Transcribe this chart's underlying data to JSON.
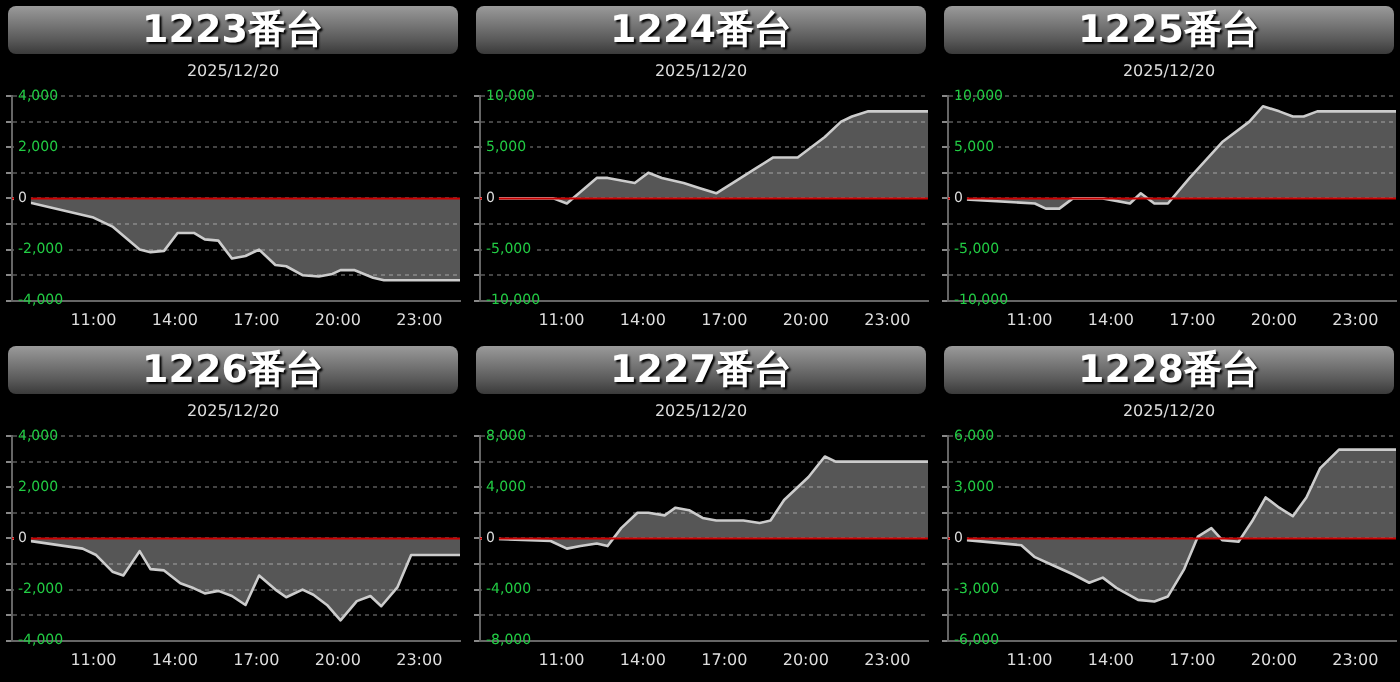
{
  "chart_data": [
    {
      "type": "area",
      "title": "1223番台",
      "subtitle": "2025/12/20",
      "marker": "none",
      "grid": "y",
      "legend": false,
      "xlim": [
        8,
        24.5
      ],
      "xticks": [
        {
          "value": 11,
          "label": "11:00"
        },
        {
          "value": 14,
          "label": "14:00"
        },
        {
          "value": 17,
          "label": "17:00"
        },
        {
          "value": 20,
          "label": "20:00"
        },
        {
          "value": 23,
          "label": "23:00"
        }
      ],
      "ylim": [
        -4000,
        4000
      ],
      "yticks": [
        {
          "value": -4000,
          "label": "-4,000"
        },
        {
          "value": -3000,
          "label": null
        },
        {
          "value": -2000,
          "label": "-2,000"
        },
        {
          "value": -1000,
          "label": null
        },
        {
          "value": 0,
          "label": "0"
        },
        {
          "value": 1000,
          "label": null
        },
        {
          "value": 2000,
          "label": "2,000"
        },
        {
          "value": 3000,
          "label": null
        },
        {
          "value": 4000,
          "label": "4,000"
        }
      ],
      "ref_lines": [
        {
          "axis": "y",
          "value": 0,
          "color": "#cc0000"
        }
      ],
      "series": [
        {
          "color": "#cccccc",
          "x": [
            8,
            11,
            11.7,
            12.7,
            13.1,
            13.6,
            14.1,
            14.7,
            15.1,
            15.6,
            16.1,
            16.6,
            17.1,
            17.7,
            18.1,
            18.7,
            19.3,
            19.8,
            20.1,
            20.6,
            21.3,
            21.7,
            24.5
          ],
          "values": [
            0,
            -750,
            -1100,
            -2000,
            -2100,
            -2050,
            -1350,
            -1350,
            -1600,
            -1650,
            -2350,
            -2250,
            -2000,
            -2600,
            -2650,
            -3000,
            -3050,
            -2950,
            -2800,
            -2800,
            -3100,
            -3200,
            -3200
          ]
        }
      ]
    },
    {
      "type": "area",
      "title": "1224番台",
      "subtitle": "2025/12/20",
      "marker": "none",
      "grid": "y",
      "legend": false,
      "xlim": [
        8,
        24.5
      ],
      "xticks": [
        {
          "value": 11,
          "label": "11:00"
        },
        {
          "value": 14,
          "label": "14:00"
        },
        {
          "value": 17,
          "label": "17:00"
        },
        {
          "value": 20,
          "label": "20:00"
        },
        {
          "value": 23,
          "label": "23:00"
        }
      ],
      "ylim": [
        -10000,
        10000
      ],
      "yticks": [
        {
          "value": -10000,
          "label": "-10,000"
        },
        {
          "value": -7500,
          "label": null
        },
        {
          "value": -5000,
          "label": "-5,000"
        },
        {
          "value": -2500,
          "label": null
        },
        {
          "value": 0,
          "label": "0"
        },
        {
          "value": 2500,
          "label": null
        },
        {
          "value": 5000,
          "label": "5,000"
        },
        {
          "value": 7500,
          "label": null
        },
        {
          "value": 10000,
          "label": "10,000"
        }
      ],
      "ref_lines": [
        {
          "axis": "y",
          "value": 0,
          "color": "#cc0000"
        }
      ],
      "series": [
        {
          "color": "#cccccc",
          "x": [
            8,
            10.7,
            11.2,
            12.3,
            12.7,
            13.7,
            14.2,
            14.7,
            15.5,
            16.1,
            16.7,
            17.3,
            18.2,
            18.8,
            19.2,
            19.7,
            20.2,
            20.7,
            21.3,
            21.7,
            22.3,
            24.5
          ],
          "values": [
            0,
            0,
            -500,
            2000,
            2000,
            1500,
            2500,
            2000,
            1500,
            1000,
            500,
            1500,
            3000,
            4000,
            4000,
            4000,
            5000,
            6000,
            7500,
            8000,
            8500,
            8500
          ]
        }
      ]
    },
    {
      "type": "area",
      "title": "1225番台",
      "subtitle": "2025/12/20",
      "marker": "none",
      "grid": "y",
      "legend": false,
      "xlim": [
        8,
        24.5
      ],
      "xticks": [
        {
          "value": 11,
          "label": "11:00"
        },
        {
          "value": 14,
          "label": "14:00"
        },
        {
          "value": 17,
          "label": "17:00"
        },
        {
          "value": 20,
          "label": "20:00"
        },
        {
          "value": 23,
          "label": "23:00"
        }
      ],
      "ylim": [
        -10000,
        10000
      ],
      "yticks": [
        {
          "value": -10000,
          "label": "-10,000"
        },
        {
          "value": -7500,
          "label": null
        },
        {
          "value": -5000,
          "label": "-5,000"
        },
        {
          "value": -2500,
          "label": null
        },
        {
          "value": 0,
          "label": "0"
        },
        {
          "value": 2500,
          "label": null
        },
        {
          "value": 5000,
          "label": "5,000"
        },
        {
          "value": 7500,
          "label": null
        },
        {
          "value": 10000,
          "label": "10,000"
        }
      ],
      "ref_lines": [
        {
          "axis": "y",
          "value": 0,
          "color": "#cc0000"
        }
      ],
      "series": [
        {
          "color": "#cccccc",
          "x": [
            8,
            11.2,
            11.6,
            12.1,
            12.6,
            13.1,
            13.7,
            14.7,
            15.1,
            15.6,
            16.1,
            16.9,
            18.1,
            19.1,
            19.6,
            20.2,
            20.7,
            21.1,
            21.6,
            24.5
          ],
          "values": [
            0,
            -500,
            -1000,
            -1000,
            0,
            0,
            0,
            -500,
            500,
            -500,
            -500,
            2000,
            5500,
            7500,
            9000,
            8500,
            8000,
            8000,
            8500,
            8500
          ]
        }
      ]
    },
    {
      "type": "area",
      "title": "1226番台",
      "subtitle": "2025/12/20",
      "marker": "none",
      "grid": "y",
      "legend": false,
      "xlim": [
        8,
        24.5
      ],
      "xticks": [
        {
          "value": 11,
          "label": "11:00"
        },
        {
          "value": 14,
          "label": "14:00"
        },
        {
          "value": 17,
          "label": "17:00"
        },
        {
          "value": 20,
          "label": "20:00"
        },
        {
          "value": 23,
          "label": "23:00"
        }
      ],
      "ylim": [
        -4000,
        4000
      ],
      "yticks": [
        {
          "value": -4000,
          "label": "-4,000"
        },
        {
          "value": -3000,
          "label": null
        },
        {
          "value": -2000,
          "label": "-2,000"
        },
        {
          "value": -1000,
          "label": null
        },
        {
          "value": 0,
          "label": "0"
        },
        {
          "value": 1000,
          "label": null
        },
        {
          "value": 2000,
          "label": "2,000"
        },
        {
          "value": 3000,
          "label": null
        },
        {
          "value": 4000,
          "label": "4,000"
        }
      ],
      "ref_lines": [
        {
          "axis": "y",
          "value": 0,
          "color": "#cc0000"
        }
      ],
      "series": [
        {
          "color": "#cccccc",
          "x": [
            8,
            10.6,
            11.1,
            11.7,
            12.1,
            12.7,
            13.1,
            13.6,
            14.2,
            14.7,
            15.1,
            15.6,
            16.1,
            16.6,
            17.1,
            17.7,
            18.1,
            18.7,
            19.1,
            19.6,
            20.1,
            20.7,
            21.2,
            21.6,
            22.2,
            22.7,
            24.5
          ],
          "values": [
            0,
            -400,
            -650,
            -1300,
            -1450,
            -500,
            -1200,
            -1250,
            -1750,
            -1950,
            -2150,
            -2050,
            -2250,
            -2600,
            -1450,
            -2000,
            -2300,
            -2000,
            -2200,
            -2600,
            -3200,
            -2450,
            -2250,
            -2650,
            -1900,
            -650,
            -650
          ]
        }
      ]
    },
    {
      "type": "area",
      "title": "1227番台",
      "subtitle": "2025/12/20",
      "marker": "none",
      "grid": "y",
      "legend": false,
      "xlim": [
        8,
        24.5
      ],
      "xticks": [
        {
          "value": 11,
          "label": "11:00"
        },
        {
          "value": 14,
          "label": "14:00"
        },
        {
          "value": 17,
          "label": "17:00"
        },
        {
          "value": 20,
          "label": "20:00"
        },
        {
          "value": 23,
          "label": "23:00"
        }
      ],
      "ylim": [
        -8000,
        8000
      ],
      "yticks": [
        {
          "value": -8000,
          "label": "-8,000"
        },
        {
          "value": -6000,
          "label": null
        },
        {
          "value": -4000,
          "label": "-4,000"
        },
        {
          "value": -2000,
          "label": null
        },
        {
          "value": 0,
          "label": "0"
        },
        {
          "value": 2000,
          "label": null
        },
        {
          "value": 4000,
          "label": "4,000"
        },
        {
          "value": 6000,
          "label": null
        },
        {
          "value": 8000,
          "label": "8,000"
        }
      ],
      "ref_lines": [
        {
          "axis": "y",
          "value": 0,
          "color": "#cc0000"
        }
      ],
      "series": [
        {
          "color": "#cccccc",
          "x": [
            8,
            10.6,
            11.2,
            11.7,
            12.3,
            12.7,
            13.2,
            13.8,
            14.2,
            14.8,
            15.2,
            15.7,
            16.2,
            16.7,
            17.7,
            18.3,
            18.7,
            19.2,
            20.1,
            20.7,
            21.1,
            24.5
          ],
          "values": [
            0,
            -200,
            -800,
            -600,
            -400,
            -600,
            800,
            2000,
            2000,
            1800,
            2400,
            2200,
            1600,
            1400,
            1400,
            1200,
            1400,
            3000,
            4800,
            6400,
            6000,
            6000
          ]
        }
      ]
    },
    {
      "type": "area",
      "title": "1228番台",
      "subtitle": "2025/12/20",
      "marker": "none",
      "grid": "y",
      "legend": false,
      "xlim": [
        8,
        24.5
      ],
      "xticks": [
        {
          "value": 11,
          "label": "11:00"
        },
        {
          "value": 14,
          "label": "14:00"
        },
        {
          "value": 17,
          "label": "17:00"
        },
        {
          "value": 20,
          "label": "20:00"
        },
        {
          "value": 23,
          "label": "23:00"
        }
      ],
      "ylim": [
        -6000,
        6000
      ],
      "yticks": [
        {
          "value": -6000,
          "label": "-6,000"
        },
        {
          "value": -4500,
          "label": null
        },
        {
          "value": -3000,
          "label": "-3,000"
        },
        {
          "value": -1500,
          "label": null
        },
        {
          "value": 0,
          "label": "0"
        },
        {
          "value": 1500,
          "label": null
        },
        {
          "value": 3000,
          "label": "3,000"
        },
        {
          "value": 4500,
          "label": null
        },
        {
          "value": 6000,
          "label": "6,000"
        }
      ],
      "ref_lines": [
        {
          "axis": "y",
          "value": 0,
          "color": "#cc0000"
        }
      ],
      "series": [
        {
          "color": "#cccccc",
          "x": [
            8,
            10.7,
            11.2,
            11.9,
            12.6,
            13.2,
            13.7,
            14.2,
            15,
            15.6,
            16.1,
            16.7,
            17.2,
            17.7,
            18.1,
            18.7,
            19.2,
            19.7,
            20.2,
            20.7,
            21.2,
            21.7,
            22.4,
            24.5
          ],
          "values": [
            0,
            -400,
            -1100,
            -1600,
            -2100,
            -2600,
            -2300,
            -2900,
            -3600,
            -3700,
            -3400,
            -1800,
            100,
            600,
            -100,
            -200,
            1000,
            2400,
            1800,
            1300,
            2400,
            4100,
            5200,
            5200
          ]
        }
      ]
    }
  ]
}
